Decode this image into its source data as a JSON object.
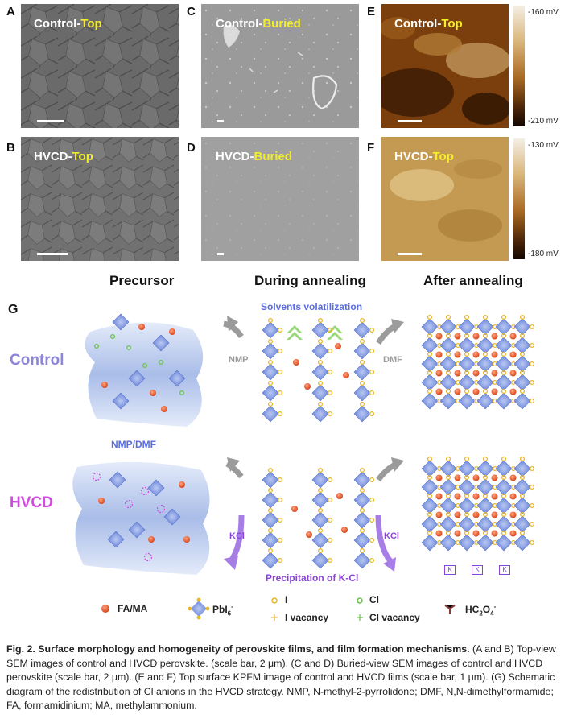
{
  "panels": {
    "A": {
      "letter": "A",
      "label_a": "Control-",
      "label_b": "Top"
    },
    "B": {
      "letter": "B",
      "label_a": "HVCD-",
      "label_b": "Top"
    },
    "C": {
      "letter": "C",
      "label_a": "Control-",
      "label_b": "Buried"
    },
    "D": {
      "letter": "D",
      "label_a": "HVCD-",
      "label_b": "Buried"
    },
    "E": {
      "letter": "E",
      "label_a": "Control-",
      "label_b": "Top",
      "cbar_top": "-160 mV",
      "cbar_bottom": "-210 mV"
    },
    "F": {
      "letter": "F",
      "label_a": "HVCD-",
      "label_b": "Top",
      "cbar_top": "-130 mV",
      "cbar_bottom": "-180 mV"
    }
  },
  "stages": {
    "s1": "Precursor",
    "s2": "During annealing",
    "s3": "After annealing"
  },
  "G": {
    "letter": "G",
    "control": "Control",
    "hvcd": "HVCD",
    "solvents": "Solvents volatilization",
    "nmp_dmf": "NMP/DMF",
    "nmp": "NMP",
    "dmf": "DMF",
    "kcl_left": "KCl",
    "kcl_right": "KCl",
    "precipitation": "Precipitation of K-Cl",
    "k_label": "K"
  },
  "legend": {
    "fa": "FA/MA",
    "pbi": "PbI",
    "pbi_sub": "6",
    "pbi_sup": "-",
    "i": "I",
    "cl": "Cl",
    "i_vac": "I vacancy",
    "cl_vac": "Cl vacancy",
    "hc2o4_a": "HC",
    "hc2o4_2": "2",
    "hc2o4_b": "O",
    "hc2o4_4": "4",
    "hc2o4_sup": "-"
  },
  "caption": {
    "title": "Fig. 2. Surface morphology and homogeneity of perovskite films, and film formation mechanisms.",
    "body": " (A and B) Top-view SEM images of control and HVCD perovskite. (scale bar, 2 μm). (C and D) Buried-view SEM images of control and HVCD perovskite (scale bar, 2 μm). (E and F) Top surface KPFM image of control and HVCD films (scale bar, 1 μm). (G) Schematic diagram of the redistribution of Cl anions in the HVCD strategy. NMP, N-methyl-2-pyrrolidone; DMF, N,N-dimethylformamide; FA, formamidinium; MA, methylammonium."
  },
  "colors": {
    "label_yellow": "#f4ee2a",
    "control_purple": "#8d86d8",
    "hvcd_magenta": "#d24be0",
    "blue_text": "#5a6ee0",
    "purple_text": "#8b44d8",
    "fa_orange": "#e8542c",
    "i_yellow": "#e8b82a",
    "cl_green": "#6cc24a"
  }
}
